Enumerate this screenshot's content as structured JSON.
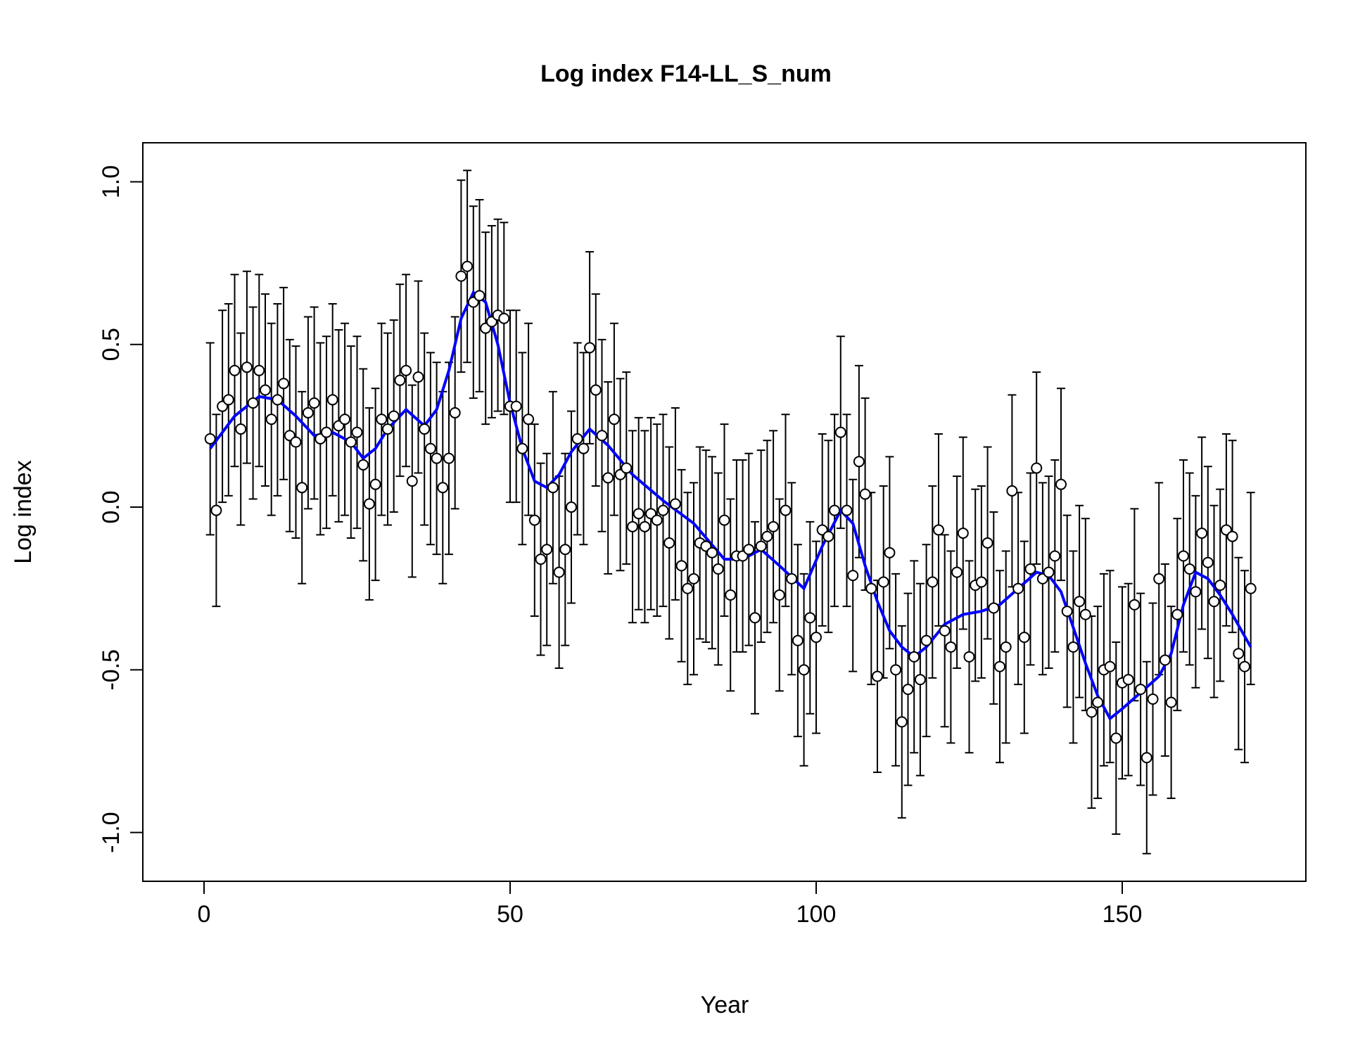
{
  "chart_data": {
    "type": "scatter",
    "title": "Log index F14-LL_S_num",
    "xlabel": "Year",
    "ylabel": "Log index",
    "xlim": [
      -10,
      180
    ],
    "ylim": [
      -1.15,
      1.12
    ],
    "x_ticks": [
      0,
      50,
      100,
      150
    ],
    "y_ticks": [
      -1.0,
      -0.5,
      0.0,
      0.5,
      1.0
    ],
    "x_tick_labels": [
      "0",
      "50",
      "100",
      "150"
    ],
    "y_tick_labels": [
      "-1.0",
      "-0.5",
      "0.0",
      "0.5",
      "1.0"
    ],
    "grid": false,
    "colors": {
      "points": "#000000",
      "point_fill": "#ffffff",
      "error_bars": "#000000",
      "smoother": "#0000ff"
    },
    "error_bar_halfwidth": 0.295,
    "series": [
      {
        "kind": "points_with_error_bars",
        "x": [
          1,
          2,
          3,
          4,
          5,
          6,
          7,
          8,
          9,
          10,
          11,
          12,
          13,
          14,
          15,
          16,
          17,
          18,
          19,
          20,
          21,
          22,
          23,
          24,
          25,
          26,
          27,
          28,
          29,
          30,
          31,
          32,
          33,
          34,
          35,
          36,
          37,
          38,
          39,
          40,
          41,
          42,
          43,
          44,
          45,
          46,
          47,
          48,
          49,
          50,
          51,
          52,
          53,
          54,
          55,
          56,
          57,
          58,
          59,
          60,
          61,
          62,
          63,
          64,
          65,
          66,
          67,
          68,
          69,
          70,
          71,
          72,
          73,
          74,
          75,
          76,
          77,
          78,
          79,
          80,
          81,
          82,
          83,
          84,
          85,
          86,
          87,
          88,
          89,
          90,
          91,
          92,
          93,
          94,
          95,
          96,
          97,
          98,
          99,
          100,
          101,
          102,
          103,
          104,
          105,
          106,
          107,
          108,
          109,
          110,
          111,
          112,
          113,
          114,
          115,
          116,
          117,
          118,
          119,
          120,
          121,
          122,
          123,
          124,
          125,
          126,
          127,
          128,
          129,
          130,
          131,
          132,
          133,
          134,
          135,
          136,
          137,
          138,
          139,
          140,
          141,
          142,
          143,
          144,
          145,
          146,
          147,
          148,
          149,
          150,
          151,
          152,
          153,
          154,
          155,
          156,
          157,
          158,
          159,
          160,
          161,
          162,
          163,
          164,
          165,
          166,
          167,
          168,
          169,
          170,
          171
        ],
        "y": [
          0.21,
          -0.01,
          0.31,
          0.33,
          0.42,
          0.24,
          0.43,
          0.32,
          0.42,
          0.36,
          0.27,
          0.33,
          0.38,
          0.22,
          0.2,
          0.06,
          0.29,
          0.32,
          0.21,
          0.23,
          0.33,
          0.25,
          0.27,
          0.2,
          0.23,
          0.13,
          0.01,
          0.07,
          0.27,
          0.24,
          0.28,
          0.39,
          0.42,
          0.08,
          0.4,
          0.24,
          0.18,
          0.15,
          0.06,
          0.15,
          0.29,
          0.71,
          0.74,
          0.63,
          0.65,
          0.55,
          0.57,
          0.59,
          0.58,
          0.31,
          0.31,
          0.18,
          0.27,
          -0.04,
          -0.16,
          -0.13,
          0.06,
          -0.2,
          -0.13,
          0.0,
          0.21,
          0.18,
          0.49,
          0.36,
          0.22,
          0.09,
          0.27,
          0.1,
          0.12,
          -0.06,
          -0.02,
          -0.06,
          -0.02,
          -0.04,
          -0.01,
          -0.11,
          0.01,
          -0.18,
          -0.25,
          -0.22,
          -0.11,
          -0.12,
          -0.14,
          -0.19,
          -0.04,
          -0.27,
          -0.15,
          -0.15,
          -0.13,
          -0.34,
          -0.12,
          -0.09,
          -0.06,
          -0.27,
          -0.01,
          -0.22,
          -0.41,
          -0.5,
          -0.34,
          -0.4,
          -0.07,
          -0.09,
          -0.01,
          0.23,
          -0.01,
          -0.21,
          0.14,
          0.04,
          -0.25,
          -0.52,
          -0.23,
          -0.14,
          -0.5,
          -0.66,
          -0.56,
          -0.46,
          -0.53,
          -0.41,
          -0.23,
          -0.07,
          -0.38,
          -0.43,
          -0.2,
          -0.08,
          -0.46,
          -0.24,
          -0.23,
          -0.11,
          -0.31,
          -0.49,
          -0.43,
          0.05,
          -0.25,
          -0.4,
          -0.19,
          0.12,
          -0.22,
          -0.2,
          -0.15,
          0.07,
          -0.32,
          -0.43,
          -0.29,
          -0.33,
          -0.63,
          -0.6,
          -0.5,
          -0.49,
          -0.71,
          -0.54,
          -0.53,
          -0.3,
          -0.56,
          -0.77,
          -0.59,
          -0.22,
          -0.47,
          -0.6,
          -0.33,
          -0.15,
          -0.19,
          -0.26,
          -0.08,
          -0.17,
          -0.29,
          -0.24,
          -0.07,
          -0.09,
          -0.45,
          -0.49,
          -0.25
        ]
      },
      {
        "kind": "smoother",
        "x": [
          1,
          5,
          9,
          12,
          15,
          18,
          21,
          24,
          26,
          28,
          30,
          33,
          36,
          38,
          40,
          42,
          44,
          46,
          48,
          50,
          52,
          54,
          56,
          58,
          60,
          63,
          66,
          70,
          75,
          80,
          85,
          88,
          91,
          94,
          98,
          101,
          104,
          106,
          108,
          110,
          112,
          114,
          116,
          118,
          121,
          124,
          127,
          130,
          133,
          136,
          138,
          140,
          142,
          144,
          146,
          148,
          150,
          153,
          156,
          158,
          160,
          162,
          164,
          166,
          168,
          171
        ],
        "y": [
          0.18,
          0.28,
          0.34,
          0.33,
          0.28,
          0.22,
          0.23,
          0.2,
          0.15,
          0.18,
          0.24,
          0.3,
          0.25,
          0.3,
          0.42,
          0.58,
          0.66,
          0.63,
          0.5,
          0.32,
          0.18,
          0.08,
          0.06,
          0.1,
          0.17,
          0.24,
          0.19,
          0.1,
          0.02,
          -0.05,
          -0.16,
          -0.16,
          -0.13,
          -0.18,
          -0.25,
          -0.12,
          -0.01,
          -0.05,
          -0.18,
          -0.29,
          -0.38,
          -0.43,
          -0.46,
          -0.43,
          -0.36,
          -0.33,
          -0.32,
          -0.3,
          -0.25,
          -0.2,
          -0.21,
          -0.26,
          -0.37,
          -0.48,
          -0.58,
          -0.65,
          -0.62,
          -0.57,
          -0.52,
          -0.45,
          -0.3,
          -0.2,
          -0.22,
          -0.27,
          -0.33,
          -0.43
        ]
      }
    ]
  }
}
